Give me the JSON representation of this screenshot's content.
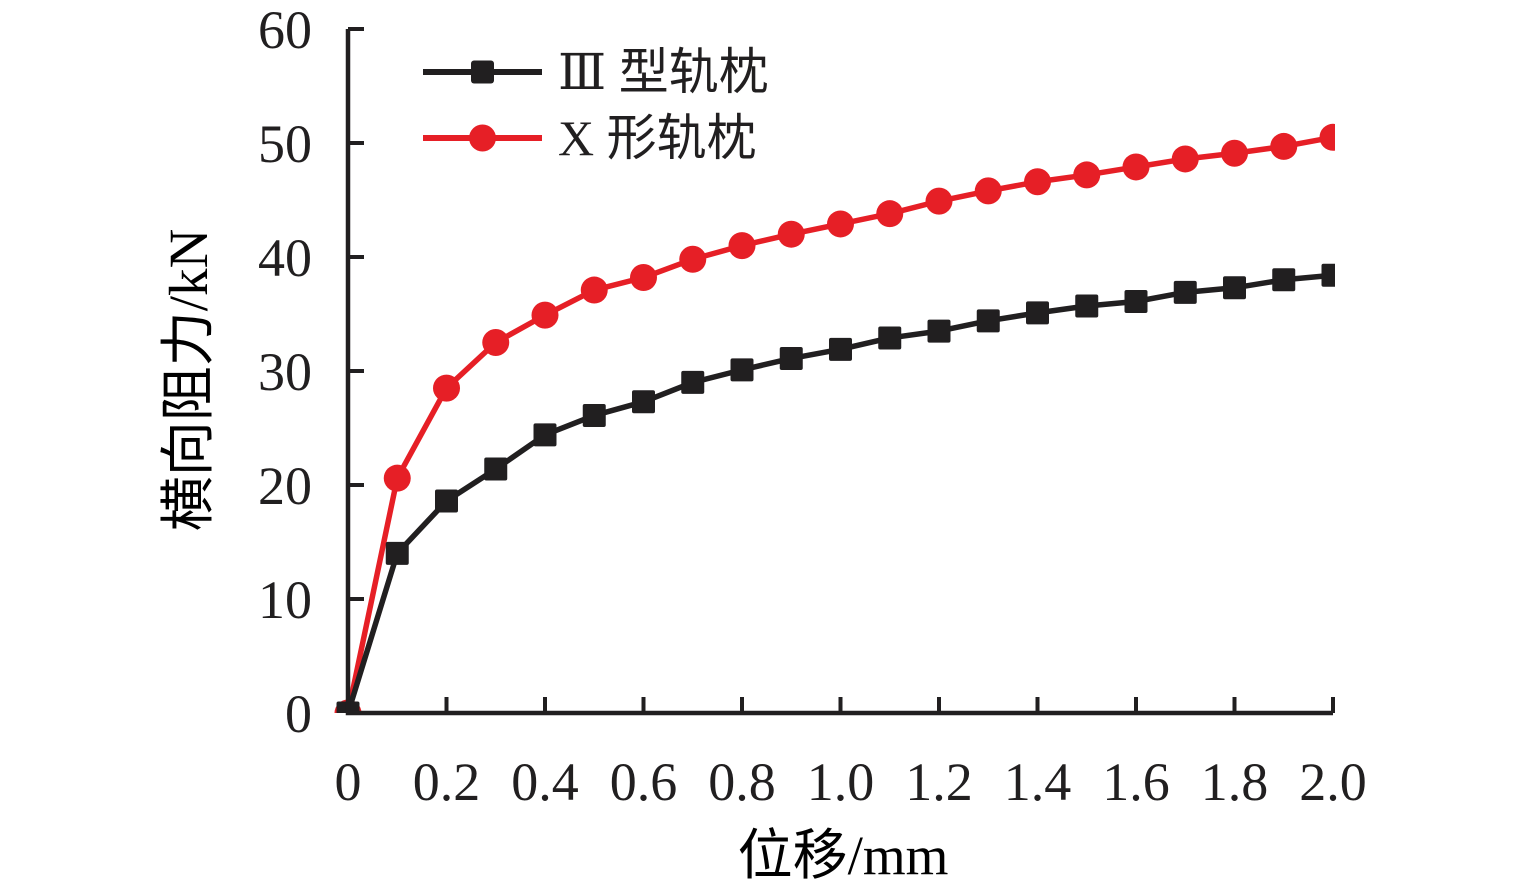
{
  "figure": {
    "background_color": "#ffffff",
    "text_color": "#211f20",
    "axis_color": "#211f20"
  },
  "chart_data": {
    "type": "line",
    "title": "",
    "xlabel": "位移/mm",
    "ylabel": "横向阻力/kN",
    "xlim": [
      0,
      2.0
    ],
    "ylim": [
      0,
      60
    ],
    "grid": false,
    "legend_position": "inside-top-left",
    "x_tick_values": [
      0,
      0.2,
      0.4,
      0.6,
      0.8,
      1.0,
      1.2,
      1.4,
      1.6,
      1.8,
      2.0
    ],
    "x_tick_labels": [
      "0",
      "0.2",
      "0.4",
      "0.6",
      "0.8",
      "1.0",
      "1.2",
      "1.4",
      "1.6",
      "1.8",
      "2.0"
    ],
    "y_tick_values": [
      0,
      10,
      20,
      30,
      40,
      50,
      60
    ],
    "y_tick_labels": [
      "0",
      "10",
      "20",
      "30",
      "40",
      "50",
      "60"
    ],
    "x": [
      0,
      0.1,
      0.2,
      0.3,
      0.4,
      0.5,
      0.6,
      0.7,
      0.8,
      0.9,
      1.0,
      1.1,
      1.2,
      1.3,
      1.4,
      1.5,
      1.6,
      1.7,
      1.8,
      1.9,
      2.0
    ],
    "series": [
      {
        "name": "Ⅲ 型轨枕",
        "marker": "square",
        "color": "#211f20",
        "values": [
          0,
          14.0,
          18.6,
          21.4,
          24.4,
          26.1,
          27.3,
          29.0,
          30.1,
          31.1,
          31.9,
          32.9,
          33.5,
          34.4,
          35.1,
          35.7,
          36.1,
          36.9,
          37.3,
          38.0,
          38.4
        ]
      },
      {
        "name": "X 形轨枕",
        "marker": "circle",
        "color": "#e61f26",
        "values": [
          0,
          20.6,
          28.5,
          32.5,
          34.9,
          37.1,
          38.2,
          39.8,
          41.0,
          42.0,
          42.9,
          43.8,
          44.9,
          45.8,
          46.6,
          47.2,
          47.9,
          48.6,
          49.1,
          49.7,
          50.5
        ]
      }
    ]
  }
}
